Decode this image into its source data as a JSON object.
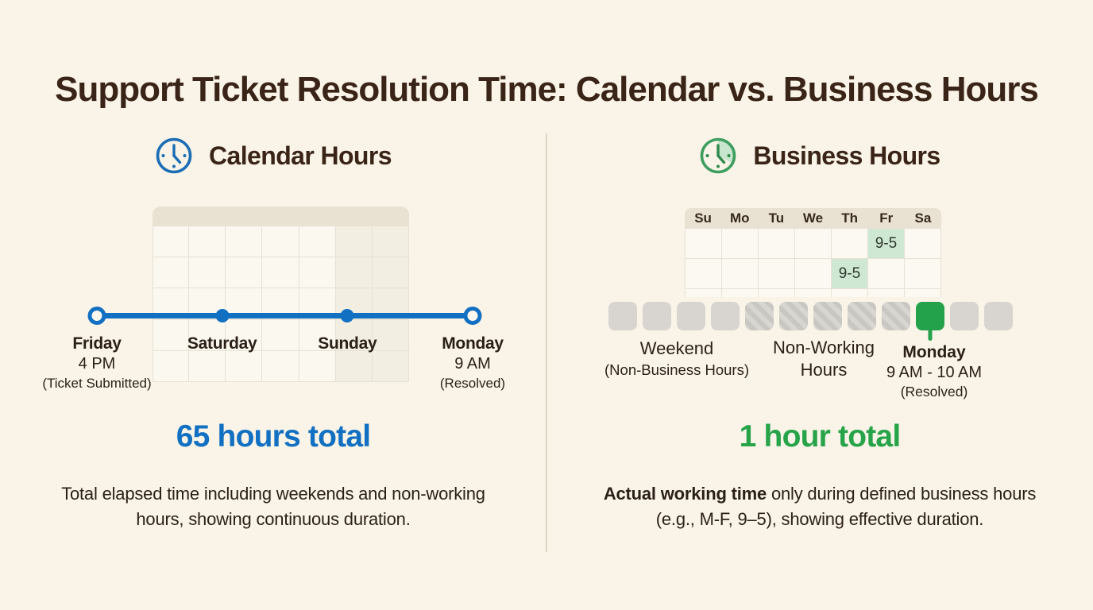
{
  "title": "Support Ticket Resolution Time: Calendar vs. Business Hours",
  "colors": {
    "background": "#faf4e8",
    "accent_blue": "#1270c2",
    "accent_green": "#23a14b",
    "light_green": "#cfe8d3",
    "header_tan": "#e9e1d2",
    "text_dark_brown": "#3a2418",
    "gray_block": "#d8d5d0"
  },
  "left": {
    "heading": "Calendar Hours",
    "icon": "clock-icon",
    "calendar": {
      "columns": 7,
      "rows": 5,
      "weekend_columns": 2
    },
    "timeline": {
      "points": [
        {
          "day": "Friday",
          "time": "4 PM",
          "note": "(Ticket Submitted)",
          "marker": "open"
        },
        {
          "day": "Saturday",
          "time": "",
          "note": "",
          "marker": "filled"
        },
        {
          "day": "Sunday",
          "time": "",
          "note": "",
          "marker": "filled"
        },
        {
          "day": "Monday",
          "time": "9 AM",
          "note": "(Resolved)",
          "marker": "open"
        }
      ]
    },
    "total": "65 hours total",
    "description": "Total elapsed time including weekends and non-working hours, showing continuous duration."
  },
  "right": {
    "heading": "Business Hours",
    "icon": "clock-icon",
    "week_days": [
      "Su",
      "Mo",
      "Tu",
      "We",
      "Th",
      "Fr",
      "Sa"
    ],
    "schedule_rows": 3,
    "schedule_cells": [
      {
        "row": 0,
        "col": 5,
        "label": "9-5"
      },
      {
        "row": 1,
        "col": 4,
        "label": "9-5"
      }
    ],
    "hour_blocks": [
      "plain",
      "plain",
      "plain",
      "plain",
      "hatched",
      "hatched",
      "hatched",
      "hatched",
      "hatched",
      "active",
      "plain",
      "plain"
    ],
    "groups": {
      "weekend": {
        "label": "Weekend",
        "sublabel": "(Non-Business Hours)"
      },
      "nonworking": {
        "label": "Non-Working Hours"
      },
      "monday": {
        "day": "Monday",
        "time": "9 AM - 10 AM",
        "note": "(Resolved)"
      }
    },
    "total": "1 hour total",
    "description": {
      "bold": "Actual working time",
      "rest": " only during defined business hours (e.g., M-F, 9–5), showing effective duration."
    }
  }
}
